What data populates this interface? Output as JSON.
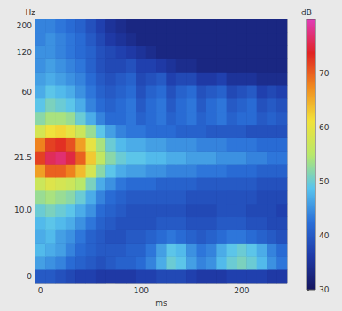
{
  "chart_data": {
    "type": "heatmap",
    "x_label": "ms",
    "y_label": "Hz",
    "x": [
      "0",
      null,
      null,
      null,
      null,
      null,
      null,
      null,
      null,
      null,
      "100",
      null,
      null,
      null,
      null,
      null,
      null,
      null,
      null,
      null,
      "200",
      null,
      null,
      null,
      null
    ],
    "y": [
      "0",
      null,
      null,
      null,
      null,
      "10.0",
      null,
      null,
      null,
      "21.5",
      null,
      null,
      null,
      null,
      "60",
      null,
      null,
      "120",
      null,
      "200"
    ],
    "cells": [
      [
        40,
        40,
        39,
        38,
        37,
        37,
        36,
        36,
        36,
        36,
        37,
        37,
        38,
        38,
        38,
        37,
        36,
        36,
        36,
        37,
        37,
        37,
        37,
        36,
        36
      ],
      [
        46,
        45,
        44,
        42,
        41,
        40,
        39,
        40,
        41,
        41,
        42,
        44,
        47,
        50,
        49,
        46,
        44,
        45,
        48,
        50,
        51,
        50,
        48,
        45,
        43
      ],
      [
        48,
        47,
        46,
        44,
        42,
        41,
        40,
        40,
        40,
        41,
        41,
        43,
        46,
        49,
        48,
        45,
        43,
        44,
        47,
        49,
        50,
        49,
        47,
        44,
        42
      ],
      [
        47,
        48,
        46,
        45,
        43,
        41,
        40,
        39,
        39,
        40,
        40,
        41,
        42,
        43,
        42,
        41,
        40,
        41,
        42,
        43,
        43,
        42,
        41,
        40,
        39
      ],
      [
        48,
        49,
        48,
        47,
        45,
        43,
        41,
        40,
        39,
        39,
        39,
        39,
        40,
        40,
        40,
        39,
        39,
        39,
        40,
        40,
        40,
        39,
        39,
        38,
        38
      ],
      [
        50,
        51,
        50,
        49,
        47,
        45,
        42,
        41,
        40,
        39,
        39,
        39,
        39,
        39,
        39,
        38,
        38,
        38,
        39,
        39,
        39,
        38,
        38,
        38,
        37
      ],
      [
        53,
        54,
        53,
        52,
        50,
        47,
        44,
        42,
        41,
        40,
        40,
        40,
        40,
        40,
        40,
        39,
        39,
        39,
        39,
        39,
        39,
        39,
        38,
        38,
        38
      ],
      [
        57,
        59,
        58,
        57,
        55,
        51,
        47,
        45,
        43,
        42,
        42,
        42,
        41,
        41,
        41,
        41,
        40,
        40,
        40,
        40,
        40,
        40,
        39,
        39,
        39
      ],
      [
        66,
        70,
        70,
        68,
        64,
        58,
        52,
        49,
        47,
        46,
        46,
        45,
        45,
        44,
        44,
        44,
        43,
        43,
        43,
        42,
        42,
        42,
        41,
        41,
        41
      ],
      [
        72,
        76,
        77,
        75,
        70,
        63,
        56,
        52,
        50,
        49,
        49,
        48,
        48,
        47,
        47,
        46,
        46,
        46,
        45,
        45,
        45,
        44,
        44,
        43,
        43
      ],
      [
        68,
        72,
        73,
        71,
        66,
        60,
        54,
        50,
        48,
        47,
        47,
        46,
        46,
        45,
        45,
        45,
        44,
        44,
        44,
        43,
        43,
        43,
        42,
        42,
        42
      ],
      [
        58,
        61,
        62,
        60,
        57,
        53,
        49,
        46,
        44,
        43,
        43,
        42,
        42,
        42,
        41,
        41,
        41,
        40,
        40,
        40,
        40,
        39,
        39,
        39,
        39
      ],
      [
        52,
        54,
        54,
        53,
        50,
        47,
        44,
        42,
        42,
        43,
        41,
        42,
        43,
        41,
        42,
        43,
        41,
        42,
        43,
        41,
        42,
        42,
        40,
        41,
        40
      ],
      [
        49,
        51,
        50,
        49,
        47,
        44,
        42,
        41,
        42,
        43,
        40,
        42,
        43,
        40,
        42,
        43,
        40,
        42,
        43,
        40,
        41,
        42,
        39,
        40,
        39
      ],
      [
        47,
        49,
        48,
        47,
        45,
        43,
        41,
        40,
        41,
        42,
        39,
        41,
        42,
        39,
        41,
        42,
        39,
        40,
        41,
        38,
        39,
        40,
        37,
        38,
        37
      ],
      [
        46,
        47,
        46,
        45,
        44,
        42,
        40,
        39,
        40,
        41,
        38,
        39,
        40,
        37,
        38,
        38,
        36,
        36,
        37,
        35,
        35,
        35,
        34,
        34,
        34
      ],
      [
        45,
        46,
        45,
        44,
        43,
        41,
        39,
        38,
        38,
        39,
        37,
        37,
        36,
        35,
        34,
        34,
        33,
        33,
        33,
        33,
        33,
        33,
        33,
        33,
        33
      ],
      [
        45,
        45,
        44,
        43,
        42,
        41,
        39,
        38,
        37,
        36,
        35,
        34,
        33,
        33,
        33,
        33,
        33,
        33,
        33,
        33,
        33,
        33,
        33,
        33,
        33
      ],
      [
        44,
        45,
        44,
        43,
        42,
        40,
        38,
        36,
        35,
        34,
        33,
        33,
        33,
        33,
        33,
        33,
        33,
        33,
        33,
        33,
        33,
        33,
        33,
        33,
        33
      ],
      [
        44,
        44,
        43,
        42,
        41,
        39,
        37,
        35,
        34,
        33,
        33,
        33,
        33,
        33,
        33,
        33,
        33,
        33,
        33,
        33,
        33,
        33,
        33,
        33,
        33
      ]
    ],
    "colorbar": {
      "label": "dB",
      "range": [
        30,
        80
      ],
      "ticks": [
        30,
        40,
        50,
        60,
        70
      ]
    }
  }
}
